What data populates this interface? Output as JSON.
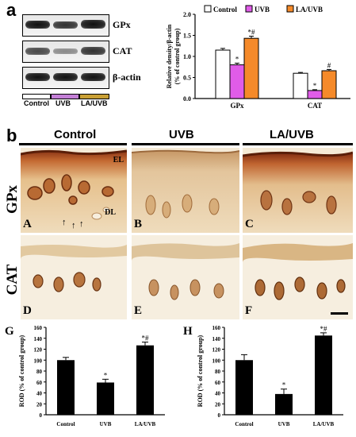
{
  "panel_a": {
    "letter": "a",
    "blots": [
      {
        "label": "GPx"
      },
      {
        "label": "CAT"
      },
      {
        "label": "β-actin"
      }
    ],
    "lanes": [
      {
        "label": "Control",
        "color": "#ffffff"
      },
      {
        "label": "UVB",
        "color": "#c37fd6"
      },
      {
        "label": "LA/UVB",
        "color": "#c9a035"
      }
    ]
  },
  "panel_b": {
    "letter": "b",
    "column_headers": [
      "Control",
      "UVB",
      "LA/UVB"
    ],
    "row_labels": [
      "GPx",
      "CAT"
    ],
    "micro_labels": [
      "A",
      "B",
      "C",
      "D",
      "E",
      "F"
    ],
    "annotations": {
      "el": "EL",
      "dl": "DL"
    }
  },
  "chart_data": [
    {
      "id": "a",
      "type": "bar",
      "categories": [
        "GPx",
        "CAT"
      ],
      "series": [
        {
          "name": "Control",
          "values": [
            1.15,
            0.6
          ],
          "errors": [
            0.04,
            0.02
          ],
          "color": "#ffffff",
          "marks": [
            "",
            ""
          ]
        },
        {
          "name": "UVB",
          "values": [
            0.8,
            0.19
          ],
          "errors": [
            0.04,
            0.02
          ],
          "color": "#e05ce8",
          "marks": [
            "*",
            "*"
          ]
        },
        {
          "name": "LA/UVB",
          "values": [
            1.43,
            0.66
          ],
          "errors": [
            0.05,
            0.03
          ],
          "color": "#f58a2a",
          "marks": [
            "*#",
            "#"
          ]
        }
      ],
      "ylabel": "Relative density/β-actin (% of control group)",
      "ylim": [
        0,
        2.0
      ],
      "yticks": [
        "0.0",
        "0.5",
        "1.0",
        "1.5",
        "2.0"
      ]
    },
    {
      "id": "G",
      "type": "bar",
      "label": "G",
      "categories": [
        "Control",
        "UVB",
        "LA/UVB"
      ],
      "values": [
        100,
        59,
        127
      ],
      "errors": [
        5,
        6,
        6
      ],
      "marks": [
        "",
        "*",
        "*#"
      ],
      "color": "#000000",
      "ylabel": "ROD (% of control group)",
      "ylim": [
        0,
        160
      ],
      "yticks": [
        "0",
        "20",
        "40",
        "60",
        "80",
        "100",
        "120",
        "140",
        "160"
      ]
    },
    {
      "id": "H",
      "type": "bar",
      "label": "H",
      "categories": [
        "Control",
        "UVB",
        "LA/UVB"
      ],
      "values": [
        100,
        38,
        145
      ],
      "errors": [
        10,
        9,
        5
      ],
      "marks": [
        "",
        "*",
        "*#"
      ],
      "color": "#000000",
      "ylabel": "ROD (% of control group)",
      "ylim": [
        0,
        160
      ],
      "yticks": [
        "0",
        "20",
        "40",
        "60",
        "80",
        "100",
        "120",
        "140",
        "160"
      ]
    }
  ]
}
